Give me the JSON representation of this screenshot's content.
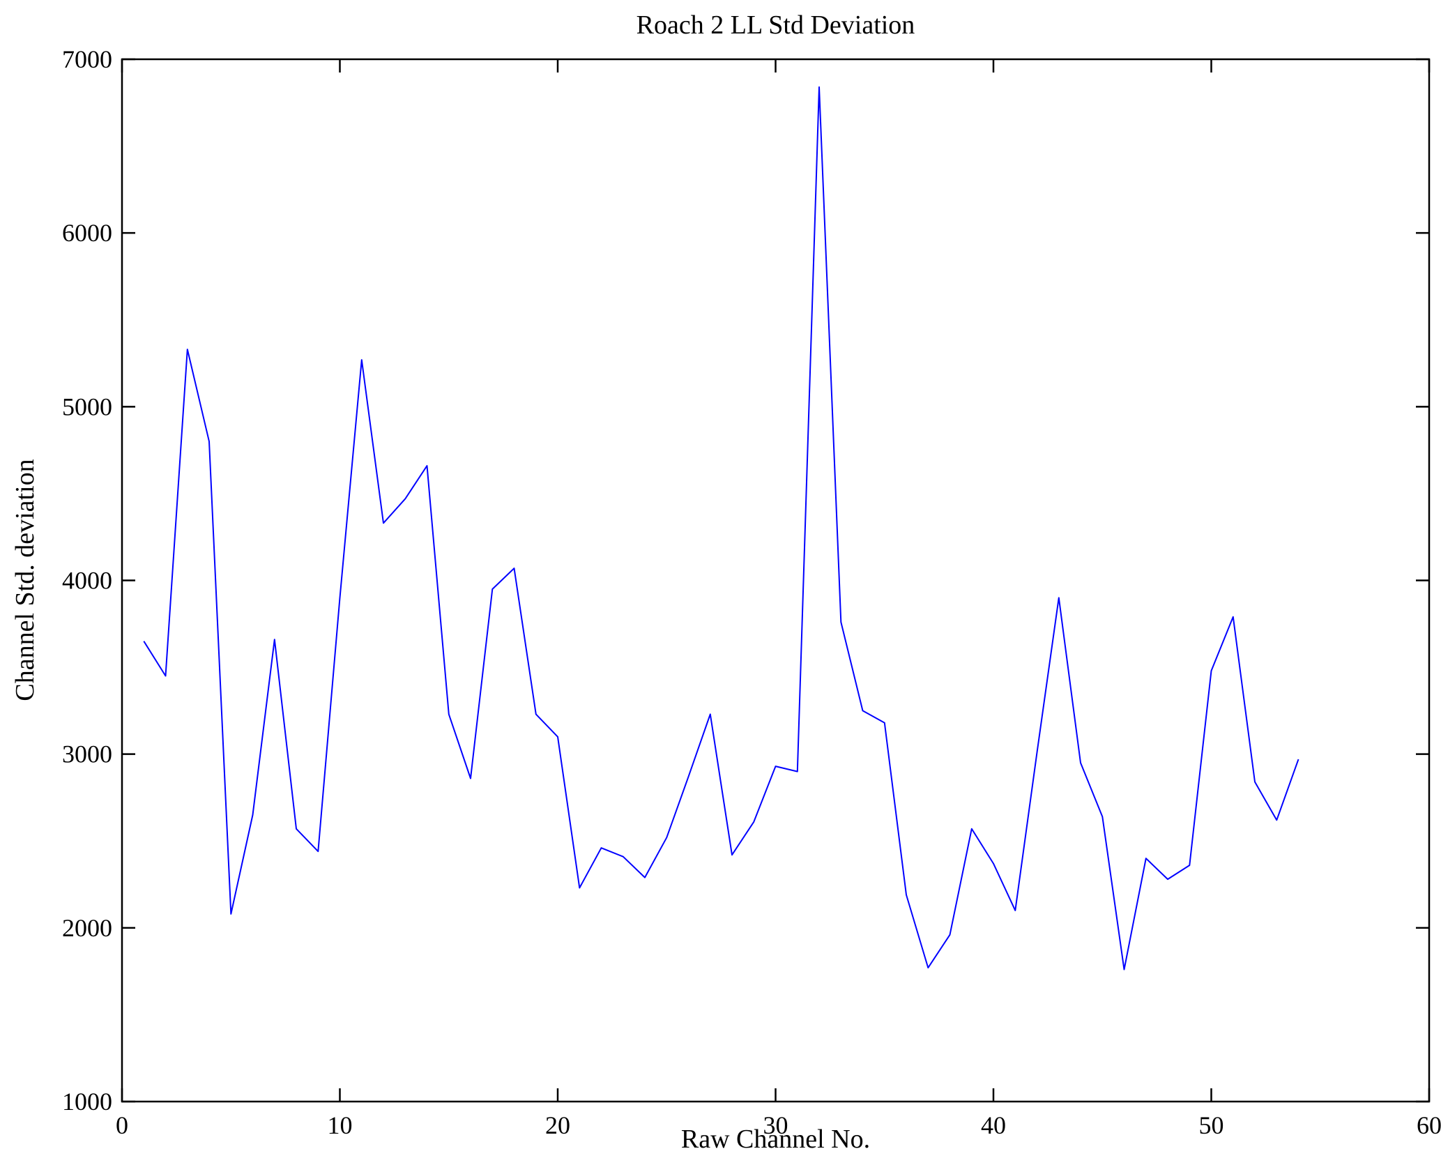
{
  "figure": {
    "background_color": "#ffffff",
    "axes_box_color": "#000000"
  },
  "chart_data": {
    "type": "line",
    "title": "Roach 2 LL Std Deviation",
    "xlabel": "Raw Channel No.",
    "ylabel": "Channel Std. deviation",
    "xlim": [
      0,
      60
    ],
    "ylim": [
      1000,
      7000
    ],
    "xticks": [
      0,
      10,
      20,
      30,
      40,
      50,
      60
    ],
    "yticks": [
      1000,
      2000,
      3000,
      4000,
      5000,
      6000,
      7000
    ],
    "grid": false,
    "legend_position": "none",
    "line_color": "#0000ff",
    "series": [
      {
        "name": "Channel Std. deviation",
        "x": [
          1,
          2,
          3,
          4,
          5,
          6,
          7,
          8,
          9,
          10,
          11,
          12,
          13,
          14,
          15,
          16,
          17,
          18,
          19,
          20,
          21,
          22,
          23,
          24,
          25,
          26,
          27,
          28,
          29,
          30,
          31,
          32,
          33,
          34,
          35,
          36,
          37,
          38,
          39,
          40,
          41,
          42,
          43,
          44,
          45,
          46,
          47,
          48,
          49,
          50,
          51,
          52,
          53,
          54
        ],
        "values": [
          3650,
          3450,
          5330,
          4800,
          2080,
          2650,
          3660,
          2570,
          2440,
          3900,
          5270,
          4330,
          4470,
          4660,
          3230,
          2860,
          3950,
          4070,
          3230,
          3100,
          2230,
          2460,
          2410,
          2290,
          2520,
          2870,
          3230,
          2420,
          2610,
          2930,
          2900,
          6840,
          3760,
          3250,
          3180,
          2190,
          1770,
          1960,
          2570,
          2370,
          2100,
          3010,
          3900,
          2950,
          2640,
          1760,
          2400,
          2280,
          2360,
          3480,
          3790,
          2840,
          2620,
          2970
        ]
      }
    ]
  }
}
